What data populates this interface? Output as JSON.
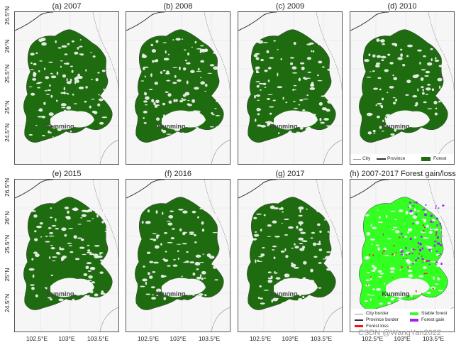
{
  "panels": [
    {
      "title": "(a) 2007"
    },
    {
      "title": "(b) 2008"
    },
    {
      "title": "(c) 2009"
    },
    {
      "title": "(d) 2010"
    },
    {
      "title": "(e) 2015"
    },
    {
      "title": "(f) 2016"
    },
    {
      "title": "(g) 2017"
    },
    {
      "title": "(h) 2007-2017 Forest gain/loss"
    }
  ],
  "city_label": "Kunming",
  "y_ticks": [
    "26.5°N",
    "26°N",
    "25.5°N",
    "25°N",
    "24.5°N"
  ],
  "x_ticks": [
    "102.5°E",
    "103°E",
    "103.5°E"
  ],
  "legend_top": {
    "city": "City",
    "province": "Province",
    "forest": "Forest"
  },
  "legend_change": {
    "city_border": "City border",
    "province_border": "Province border",
    "forest_loss": "Forest loss",
    "stable_forest": "Stable forest",
    "forest_gain": "Forest gain"
  },
  "colors": {
    "forest": "#1f6b0f",
    "stable_forest": "#33ff22",
    "forest_gain": "#a020f0",
    "forest_loss": "#ff1111",
    "background": "#f6f6f6"
  },
  "watermark": "CSDN @WangYan2022"
}
